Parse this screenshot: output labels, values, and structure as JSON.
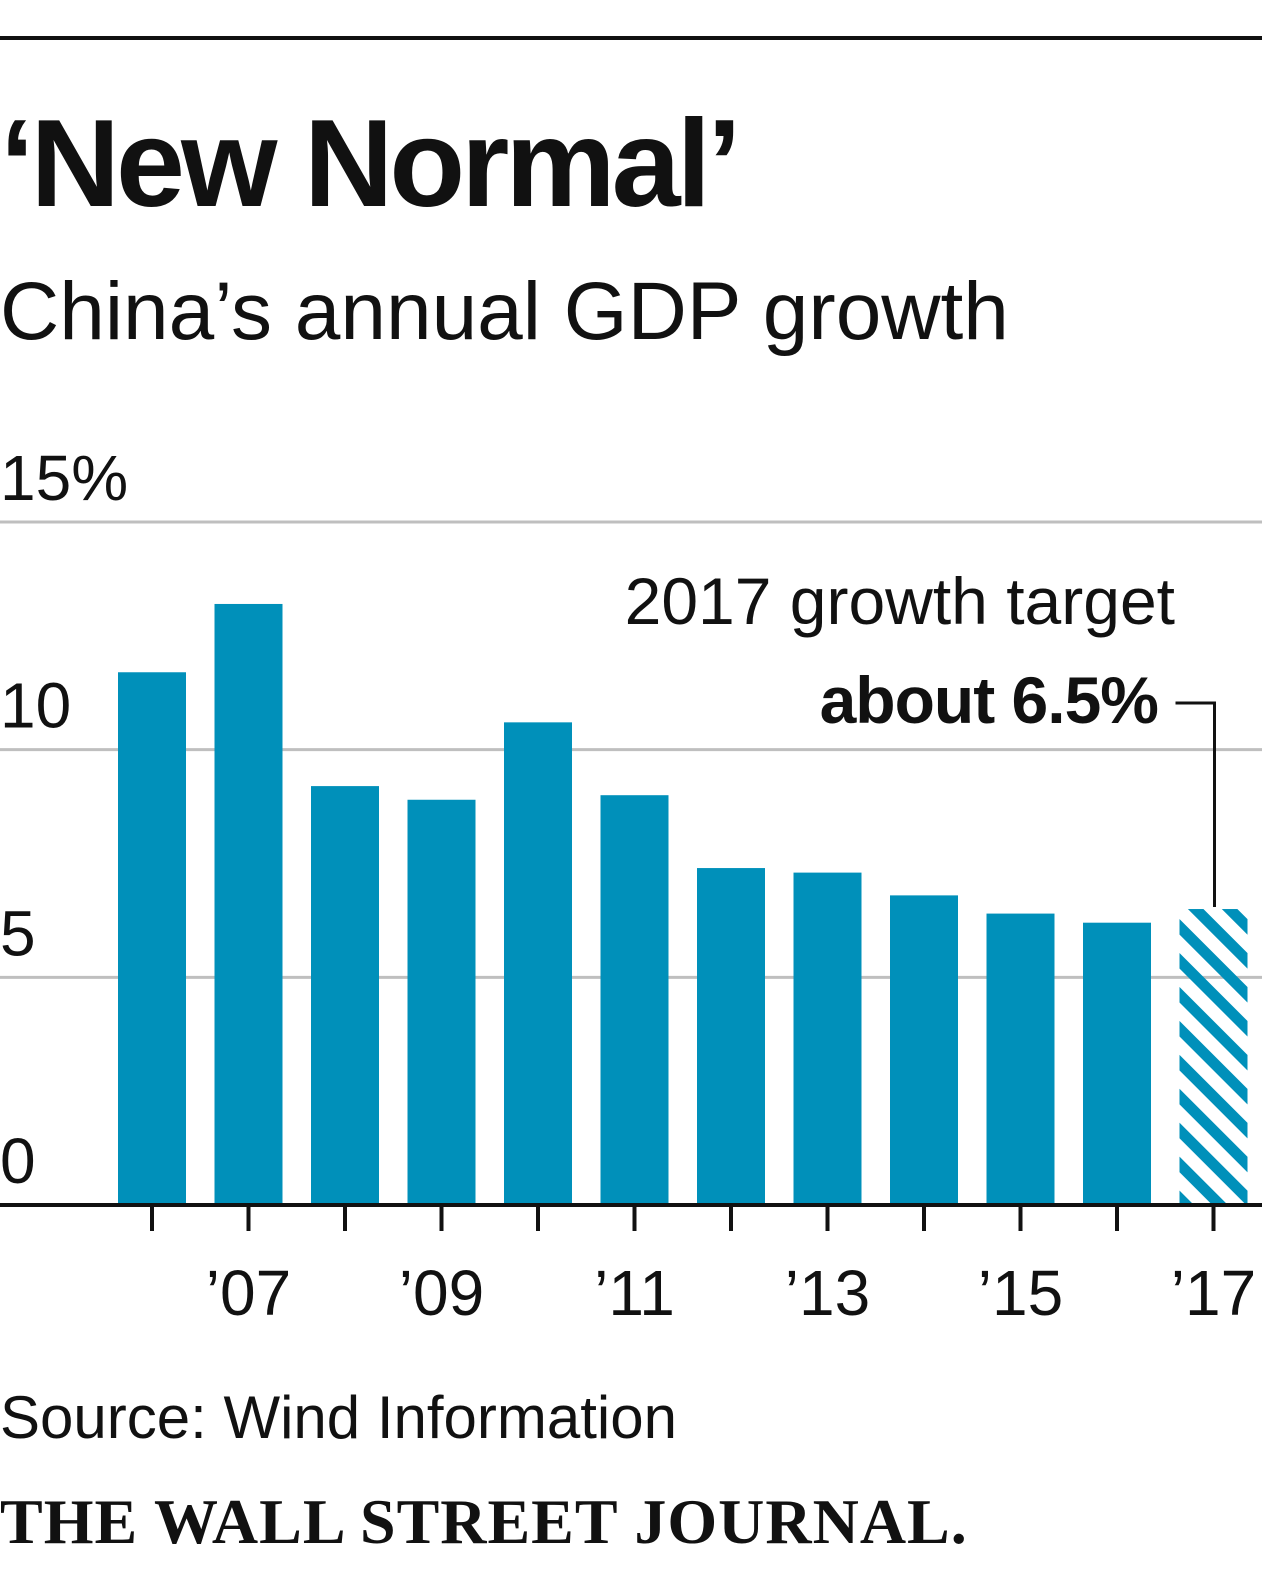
{
  "header": {
    "title": "‘New Normal’",
    "subtitle": "China’s annual GDP growth"
  },
  "chart_data": {
    "type": "bar",
    "categories": [
      "2006",
      "2007",
      "2008",
      "2009",
      "2010",
      "2011",
      "2012",
      "2013",
      "2014",
      "2015",
      "2016",
      "2017"
    ],
    "values": [
      11.7,
      13.2,
      9.2,
      8.9,
      10.6,
      9.0,
      7.4,
      7.3,
      6.8,
      6.4,
      6.2,
      6.5
    ],
    "projected": [
      false,
      false,
      false,
      false,
      false,
      false,
      false,
      false,
      false,
      false,
      false,
      true
    ],
    "x_tick_labels": [
      "",
      "’07",
      "",
      "’09",
      "",
      "’11",
      "",
      "’13",
      "",
      "’15",
      "",
      "’17"
    ],
    "y_ticks": [
      0,
      5,
      10,
      15
    ],
    "y_tick_labels": [
      "0",
      "5",
      "10",
      "15%"
    ],
    "ylim": [
      0,
      15
    ],
    "grid": true,
    "annotation": {
      "line1": "2017 growth target",
      "line2": "about 6.5%"
    },
    "colors": {
      "bar": "#0090ba",
      "grid": "#bfbfbf",
      "axis": "#111111"
    }
  },
  "footer": {
    "source": "Source: Wind Information",
    "logo": "THE WALL STREET JOURNAL."
  }
}
